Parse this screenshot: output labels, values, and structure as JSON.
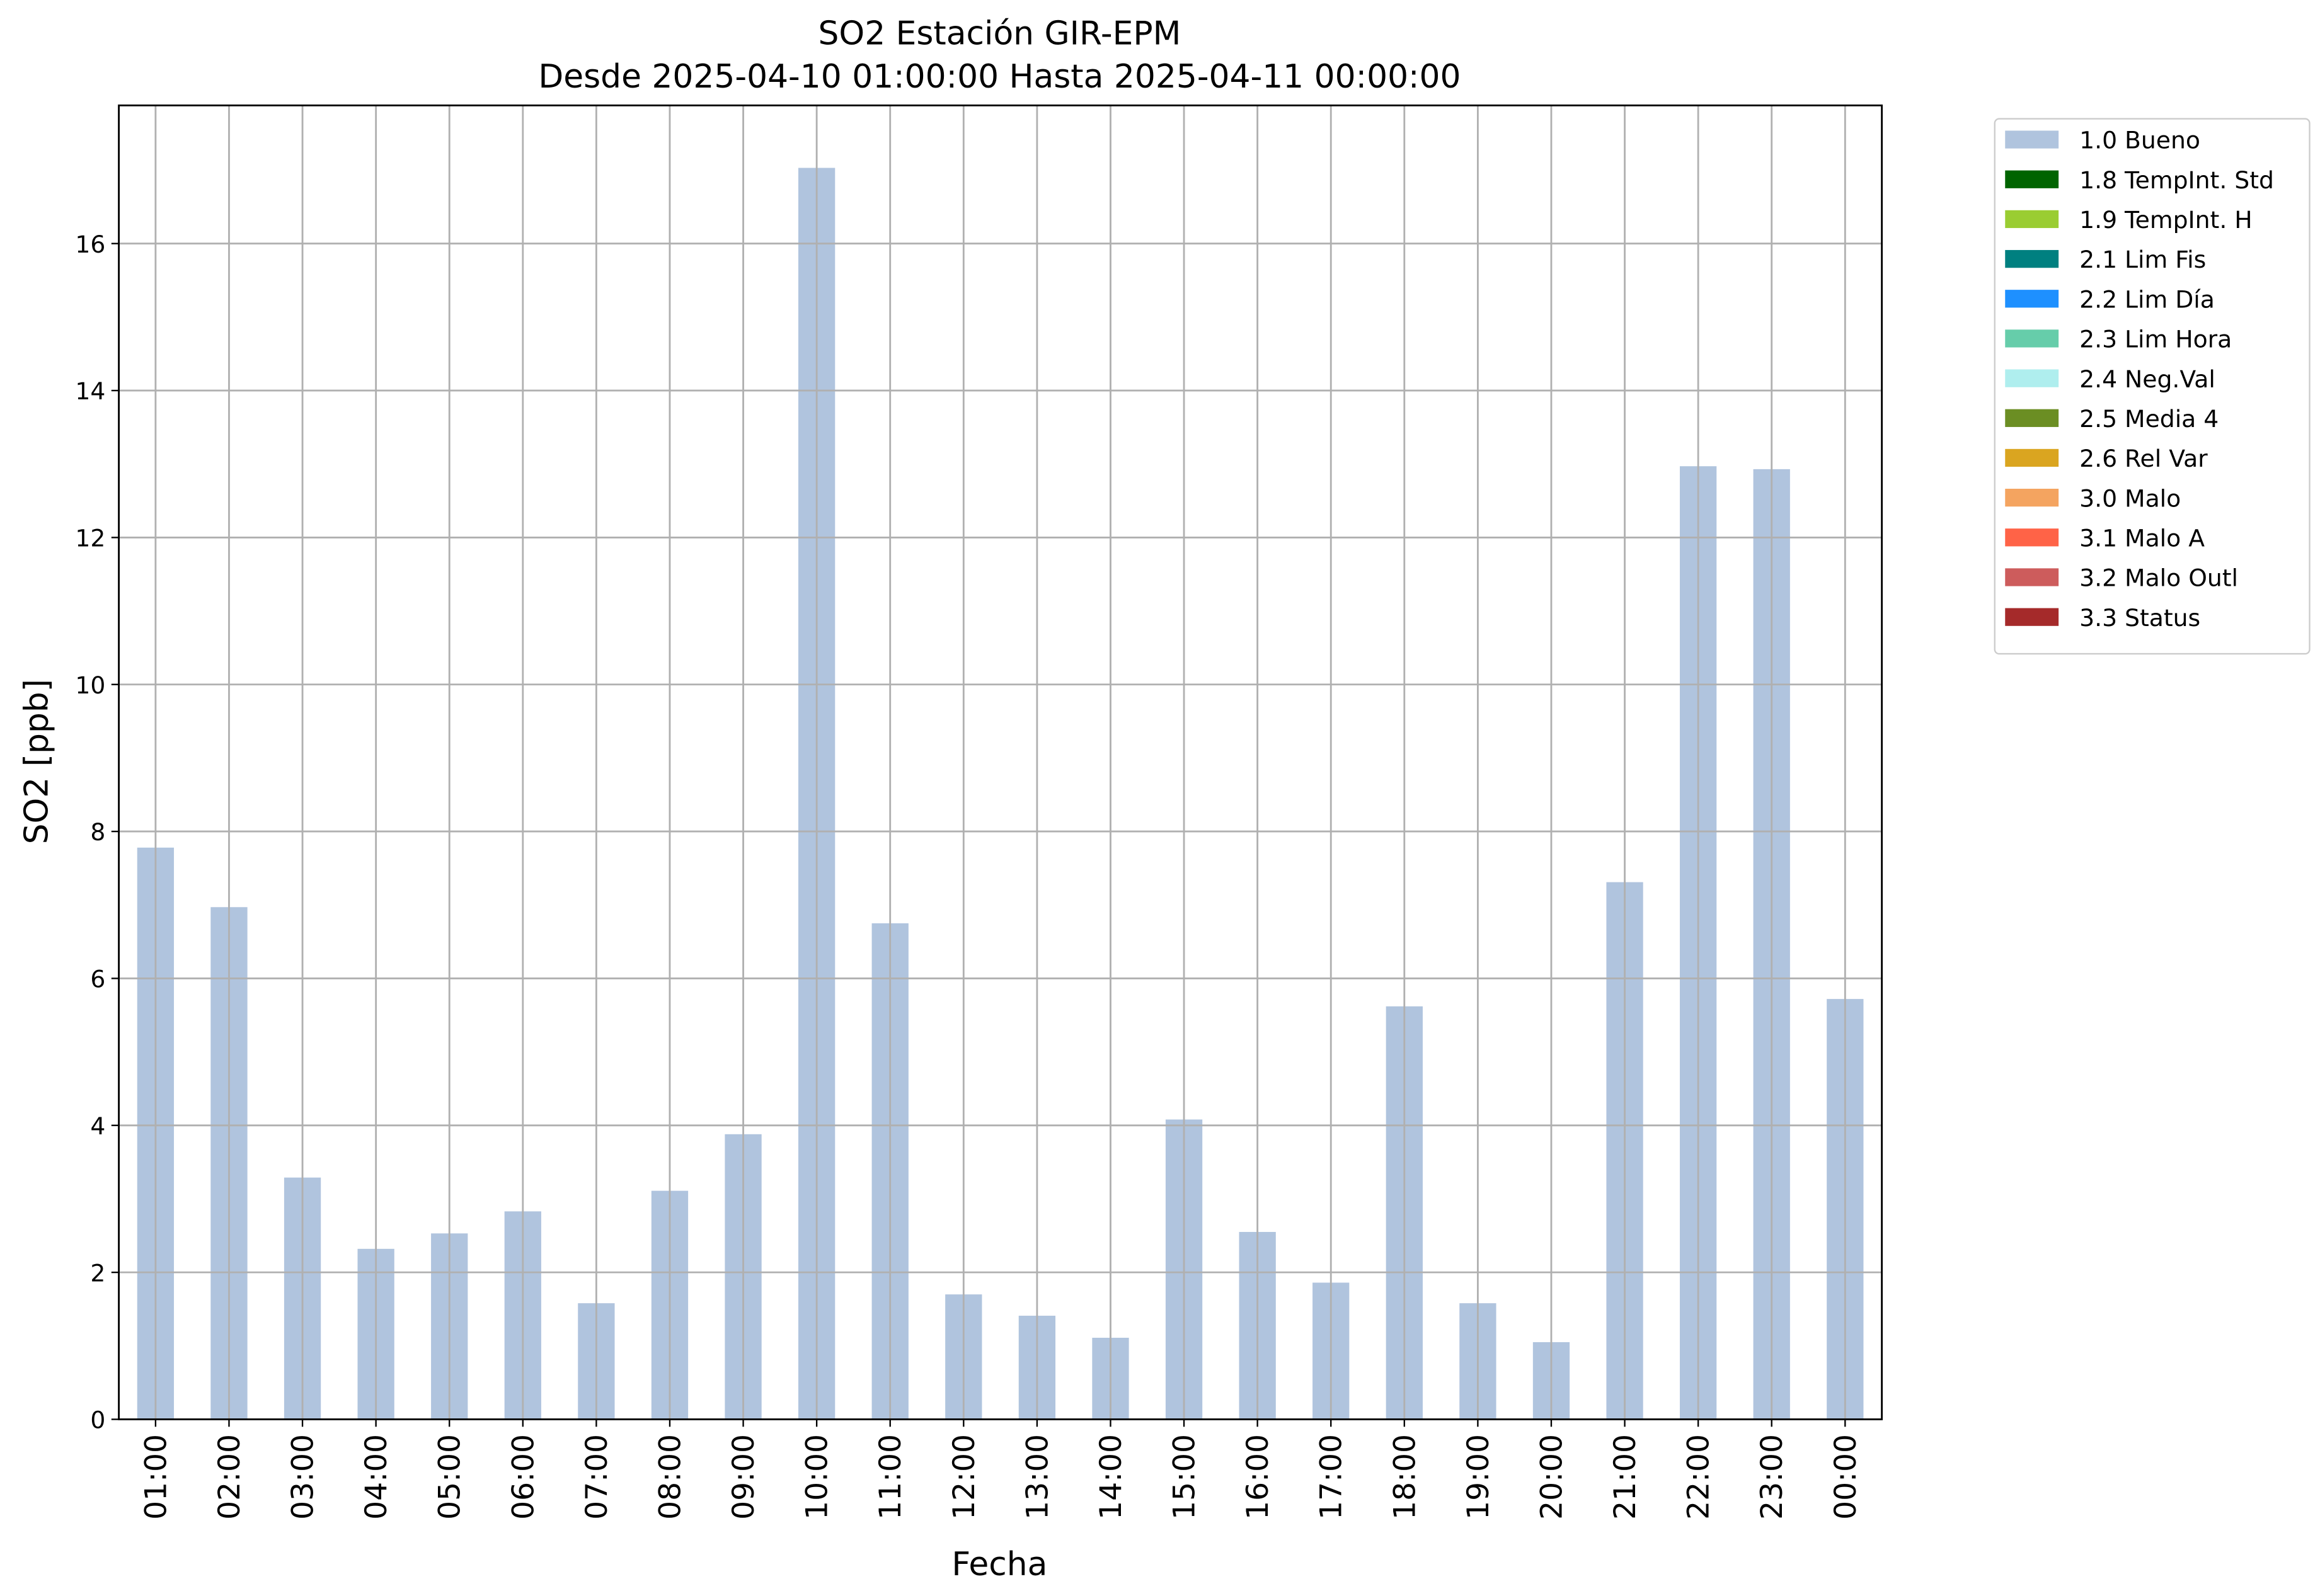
{
  "chart_data": {
    "type": "bar",
    "title": "SO2 Estación GIR-EPM",
    "subtitle": "Desde 2025-04-10 01:00:00 Hasta 2025-04-11 00:00:00",
    "x_label": "Fecha",
    "y_label": "SO2 [ppb]",
    "categories": [
      "01:00",
      "02:00",
      "03:00",
      "04:00",
      "05:00",
      "06:00",
      "07:00",
      "08:00",
      "09:00",
      "10:00",
      "11:00",
      "12:00",
      "13:00",
      "14:00",
      "15:00",
      "16:00",
      "17:00",
      "18:00",
      "19:00",
      "20:00",
      "21:00",
      "22:00",
      "23:00",
      "00:00"
    ],
    "series": [
      {
        "name": "1.0 Bueno",
        "color": "#b0c4de",
        "values": [
          7.78,
          6.97,
          3.29,
          2.32,
          2.53,
          2.83,
          1.58,
          3.11,
          3.88,
          17.03,
          6.75,
          1.7,
          1.41,
          1.11,
          4.08,
          2.55,
          1.86,
          5.62,
          1.58,
          1.05,
          7.31,
          12.97,
          12.93,
          5.72
        ]
      },
      {
        "name": "1.8 TempInt. Std",
        "color": "#006400",
        "values": [
          null,
          null,
          null,
          null,
          null,
          null,
          null,
          null,
          null,
          null,
          null,
          null,
          null,
          null,
          null,
          null,
          null,
          null,
          null,
          null,
          null,
          null,
          null,
          null
        ]
      },
      {
        "name": "1.9 TempInt. H",
        "color": "#9acd32",
        "values": [
          null,
          null,
          null,
          null,
          null,
          null,
          null,
          null,
          null,
          null,
          null,
          null,
          null,
          null,
          null,
          null,
          null,
          null,
          null,
          null,
          null,
          null,
          null,
          null
        ]
      },
      {
        "name": "2.1 Lim Fis",
        "color": "#008080",
        "values": [
          null,
          null,
          null,
          null,
          null,
          null,
          null,
          null,
          null,
          null,
          null,
          null,
          null,
          null,
          null,
          null,
          null,
          null,
          null,
          null,
          null,
          null,
          null,
          null
        ]
      },
      {
        "name": "2.2 Lim Día",
        "color": "#1e90ff",
        "values": [
          null,
          null,
          null,
          null,
          null,
          null,
          null,
          null,
          null,
          null,
          null,
          null,
          null,
          null,
          null,
          null,
          null,
          null,
          null,
          null,
          null,
          null,
          null,
          null
        ]
      },
      {
        "name": "2.3 Lim Hora",
        "color": "#66cdaa",
        "values": [
          null,
          null,
          null,
          null,
          null,
          null,
          null,
          null,
          null,
          null,
          null,
          null,
          null,
          null,
          null,
          null,
          null,
          null,
          null,
          null,
          null,
          null,
          null,
          null
        ]
      },
      {
        "name": "2.4 Neg.Val",
        "color": "#afeeee",
        "values": [
          null,
          null,
          null,
          null,
          null,
          null,
          null,
          null,
          null,
          null,
          null,
          null,
          null,
          null,
          null,
          null,
          null,
          null,
          null,
          null,
          null,
          null,
          null,
          null
        ]
      },
      {
        "name": "2.5 Media 4",
        "color": "#6b8e23",
        "values": [
          null,
          null,
          null,
          null,
          null,
          null,
          null,
          null,
          null,
          null,
          null,
          null,
          null,
          null,
          null,
          null,
          null,
          null,
          null,
          null,
          null,
          null,
          null,
          null
        ]
      },
      {
        "name": "2.6 Rel Var",
        "color": "#daa520",
        "values": [
          null,
          null,
          null,
          null,
          null,
          null,
          null,
          null,
          null,
          null,
          null,
          null,
          null,
          null,
          null,
          null,
          null,
          null,
          null,
          null,
          null,
          null,
          null,
          null
        ]
      },
      {
        "name": "3.0 Malo",
        "color": "#f4a460",
        "values": [
          null,
          null,
          null,
          null,
          null,
          null,
          null,
          null,
          null,
          null,
          null,
          null,
          null,
          null,
          null,
          null,
          null,
          null,
          null,
          null,
          null,
          null,
          null,
          null
        ]
      },
      {
        "name": "3.1 Malo A",
        "color": "#ff6347",
        "values": [
          null,
          null,
          null,
          null,
          null,
          null,
          null,
          null,
          null,
          null,
          null,
          null,
          null,
          null,
          null,
          null,
          null,
          null,
          null,
          null,
          null,
          null,
          null,
          null
        ]
      },
      {
        "name": "3.2 Malo Outl",
        "color": "#cd5c5c",
        "values": [
          null,
          null,
          null,
          null,
          null,
          null,
          null,
          null,
          null,
          null,
          null,
          null,
          null,
          null,
          null,
          null,
          null,
          null,
          null,
          null,
          null,
          null,
          null,
          null
        ]
      },
      {
        "name": "3.3 Status",
        "color": "#a52a2a",
        "values": [
          null,
          null,
          null,
          null,
          null,
          null,
          null,
          null,
          null,
          null,
          null,
          null,
          null,
          null,
          null,
          null,
          null,
          null,
          null,
          null,
          null,
          null,
          null,
          null
        ]
      }
    ],
    "ylim": [
      0,
      17.88
    ],
    "yticks": [
      0,
      2,
      4,
      6,
      8,
      10,
      12,
      14,
      16
    ],
    "grid": true,
    "stacked": true,
    "legend": "outside upper right"
  }
}
